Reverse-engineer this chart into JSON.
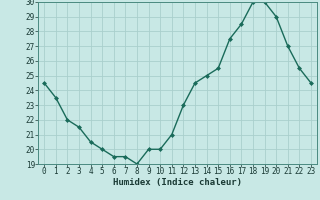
{
  "x": [
    0,
    1,
    2,
    3,
    4,
    5,
    6,
    7,
    8,
    9,
    10,
    11,
    12,
    13,
    14,
    15,
    16,
    17,
    18,
    19,
    20,
    21,
    22,
    23
  ],
  "y": [
    24.5,
    23.5,
    22.0,
    21.5,
    20.5,
    20.0,
    19.5,
    19.5,
    19.0,
    20.0,
    20.0,
    21.0,
    23.0,
    24.5,
    25.0,
    25.5,
    27.5,
    28.5,
    30.0,
    30.0,
    29.0,
    27.0,
    25.5,
    24.5
  ],
  "line_color": "#1a6b5a",
  "marker": "D",
  "marker_size": 2.0,
  "linewidth": 1.0,
  "bg_color": "#c8e8e5",
  "grid_color": "#aacfcc",
  "xlabel": "Humidex (Indice chaleur)",
  "xlim": [
    -0.5,
    23.5
  ],
  "ylim": [
    19,
    30
  ],
  "yticks": [
    19,
    20,
    21,
    22,
    23,
    24,
    25,
    26,
    27,
    28,
    29,
    30
  ],
  "xtick_labels": [
    "0",
    "1",
    "2",
    "3",
    "4",
    "5",
    "6",
    "7",
    "8",
    "9",
    "10",
    "11",
    "12",
    "13",
    "14",
    "15",
    "16",
    "17",
    "18",
    "19",
    "20",
    "21",
    "22",
    "23"
  ],
  "xlabel_fontsize": 6.5,
  "tick_fontsize": 5.5,
  "tick_color": "#1a3a35",
  "spine_color": "#4a8a80"
}
